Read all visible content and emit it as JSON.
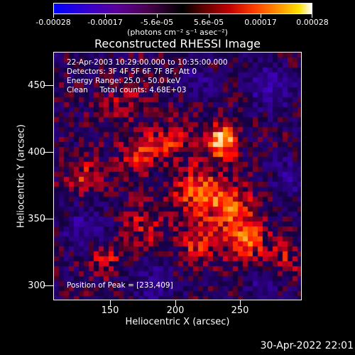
{
  "colorbar": {
    "tick_labels": [
      "-0.00028",
      "-0.00017",
      "-5.6e-05",
      "5.6e-05",
      "0.00017",
      "0.00028"
    ],
    "units": "(photons cm⁻² s⁻¹ asec⁻²)"
  },
  "title": "Reconstructed RHESSI Image",
  "info": {
    "time": "22-Apr-2003 10:29:00.000 to 10:35:00.000",
    "detectors": "Detectors: 3F 4F 5F 6F 7F 8F, Att 0",
    "energy": "Energy Range: 25.0 - 50.0 keV",
    "clean": "Clean     Total counts: 4.68E+03",
    "peak": "Position of Peak = [233,409]"
  },
  "axes": {
    "xlabel": "Heliocentric X (arcsec)",
    "ylabel": "Heliocentric Y (arcsec)",
    "xticks": [
      "150",
      "200",
      "250"
    ],
    "yticks": [
      "450",
      "400",
      "350",
      "300"
    ]
  },
  "timestamp": "30-Apr-2022 22:01",
  "chart_data": {
    "type": "heatmap",
    "title": "Reconstructed RHESSI Image",
    "xlabel": "Heliocentric X (arcsec)",
    "ylabel": "Heliocentric Y (arcsec)",
    "xlim": [
      106,
      294
    ],
    "ylim": [
      288,
      476
    ],
    "colorbar_range": [
      -0.00028,
      0.00028
    ],
    "peak_position": [
      233,
      409
    ],
    "sources": [
      {
        "x": 233,
        "y": 409,
        "amp": 1.0,
        "sigma": 8
      },
      {
        "x": 215,
        "y": 370,
        "amp": 0.55,
        "sigma": 14
      },
      {
        "x": 240,
        "y": 360,
        "amp": 0.5,
        "sigma": 12
      },
      {
        "x": 250,
        "y": 335,
        "amp": 0.6,
        "sigma": 12
      },
      {
        "x": 215,
        "y": 330,
        "amp": 0.45,
        "sigma": 10
      },
      {
        "x": 170,
        "y": 400,
        "amp": 0.45,
        "sigma": 10
      },
      {
        "x": 195,
        "y": 410,
        "amp": 0.4,
        "sigma": 10
      },
      {
        "x": 130,
        "y": 380,
        "amp": 0.45,
        "sigma": 9
      },
      {
        "x": 145,
        "y": 320,
        "amp": 0.35,
        "sigma": 9
      },
      {
        "x": 175,
        "y": 345,
        "amp": 0.3,
        "sigma": 12
      },
      {
        "x": 280,
        "y": 320,
        "amp": 0.3,
        "sigma": 10
      },
      {
        "x": 160,
        "y": 440,
        "amp": 0.3,
        "sigma": 10
      },
      {
        "x": 270,
        "y": 450,
        "amp": -0.5,
        "sigma": 12
      },
      {
        "x": 130,
        "y": 345,
        "amp": -0.4,
        "sigma": 12
      },
      {
        "x": 285,
        "y": 380,
        "amp": -0.35,
        "sigma": 12
      },
      {
        "x": 180,
        "y": 300,
        "amp": -0.35,
        "sigma": 12
      },
      {
        "x": 215,
        "y": 455,
        "amp": -0.3,
        "sigma": 10
      },
      {
        "x": 265,
        "y": 300,
        "amp": -0.3,
        "sigma": 10
      }
    ]
  }
}
